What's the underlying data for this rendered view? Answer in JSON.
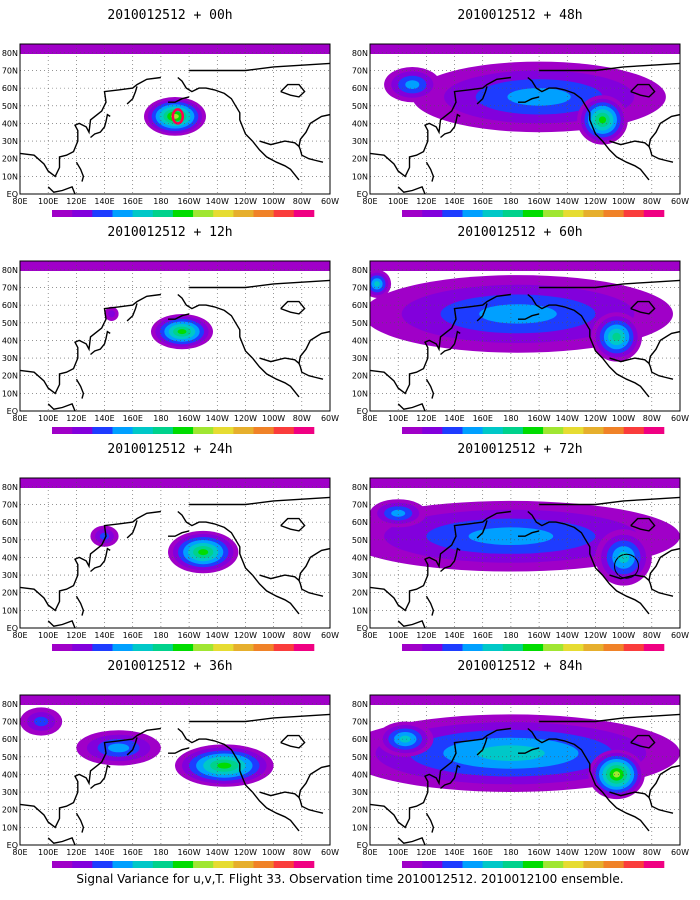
{
  "colorbar": {
    "levels": [
      "1.6",
      "2.2",
      "3.1",
      "4",
      "5.1",
      "6.3",
      "7.5",
      "9",
      "11",
      "14",
      "21",
      "29",
      "40"
    ],
    "colors": [
      "#a000c8",
      "#8200dc",
      "#1e3cff",
      "#00a0ff",
      "#00c8c8",
      "#00d28c",
      "#00dc00",
      "#a0e632",
      "#e6dc32",
      "#e6af2d",
      "#f08228",
      "#fa3c3c",
      "#f00082"
    ]
  },
  "lat_labels": [
    "80N",
    "70N",
    "60N",
    "50N",
    "40N",
    "30N",
    "20N",
    "10N",
    "EQ"
  ],
  "lon_labels": [
    "80E",
    "100E",
    "120E",
    "140E",
    "160E",
    "180",
    "160W",
    "140W",
    "120W",
    "100W",
    "80W",
    "60W"
  ],
  "panels": [
    {
      "title": "2010012512 + 00h",
      "blobs": [
        {
          "lon": 190,
          "lat": 44,
          "rx": 22,
          "ry": 11,
          "peak": 7
        }
      ],
      "marker": "red-contour"
    },
    {
      "title": "2010012512 + 48h",
      "blobs": [
        {
          "lon": 200,
          "lat": 55,
          "rx": 90,
          "ry": 20,
          "peak": 3
        },
        {
          "lon": 245,
          "lat": 42,
          "rx": 18,
          "ry": 14,
          "peak": 6
        },
        {
          "lon": 110,
          "lat": 62,
          "rx": 20,
          "ry": 10,
          "peak": 3
        }
      ]
    },
    {
      "title": "2010012512 + 12h",
      "blobs": [
        {
          "lon": 195,
          "lat": 45,
          "rx": 22,
          "ry": 10,
          "peak": 6
        },
        {
          "lon": 145,
          "lat": 55,
          "rx": 5,
          "ry": 4,
          "peak": 1
        }
      ]
    },
    {
      "title": "2010012512 + 60h",
      "blobs": [
        {
          "lon": 185,
          "lat": 55,
          "rx": 110,
          "ry": 22,
          "peak": 3
        },
        {
          "lon": 255,
          "lat": 42,
          "rx": 18,
          "ry": 14,
          "peak": 5
        },
        {
          "lon": 85,
          "lat": 72,
          "rx": 10,
          "ry": 8,
          "peak": 4
        }
      ]
    },
    {
      "title": "2010012512 + 24h",
      "blobs": [
        {
          "lon": 210,
          "lat": 43,
          "rx": 25,
          "ry": 12,
          "peak": 6
        },
        {
          "lon": 140,
          "lat": 52,
          "rx": 10,
          "ry": 6,
          "peak": 2
        }
      ]
    },
    {
      "title": "2010012512 + 72h",
      "blobs": [
        {
          "lon": 180,
          "lat": 52,
          "rx": 120,
          "ry": 20,
          "peak": 3
        },
        {
          "lon": 260,
          "lat": 40,
          "rx": 20,
          "ry": 16,
          "peak": 4
        },
        {
          "lon": 100,
          "lat": 65,
          "rx": 20,
          "ry": 8,
          "peak": 3
        }
      ],
      "marker": "black-circle"
    },
    {
      "title": "2010012512 + 36h",
      "blobs": [
        {
          "lon": 225,
          "lat": 45,
          "rx": 35,
          "ry": 12,
          "peak": 6
        },
        {
          "lon": 150,
          "lat": 55,
          "rx": 30,
          "ry": 10,
          "peak": 3
        },
        {
          "lon": 95,
          "lat": 70,
          "rx": 15,
          "ry": 8,
          "peak": 2
        }
      ]
    },
    {
      "title": "2010012512 + 84h",
      "blobs": [
        {
          "lon": 180,
          "lat": 52,
          "rx": 120,
          "ry": 22,
          "peak": 4
        },
        {
          "lon": 255,
          "lat": 40,
          "rx": 20,
          "ry": 14,
          "peak": 7
        },
        {
          "lon": 105,
          "lat": 60,
          "rx": 20,
          "ry": 10,
          "peak": 4
        }
      ]
    }
  ],
  "footer": "Signal Variance for u,v,T. Flight 33. Observation time 2010012512. 2010012100 ensemble."
}
